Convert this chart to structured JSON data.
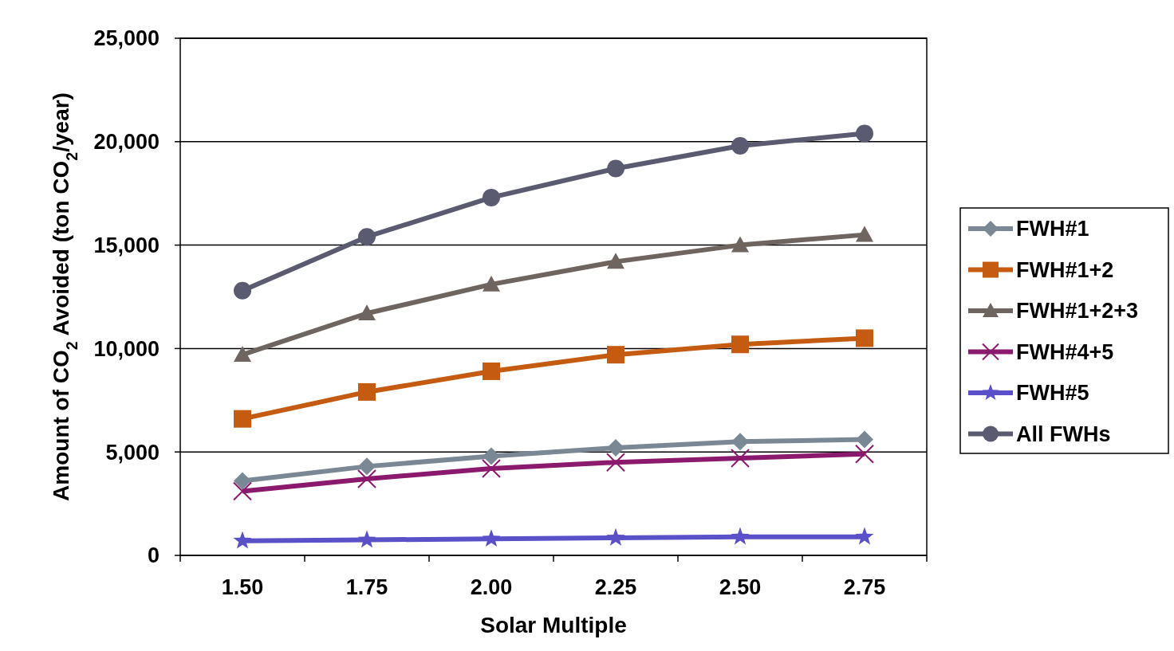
{
  "chart_data": {
    "type": "line",
    "xlabel": "Solar Multiple",
    "ylabel": "Amount of CO$_{2}$ Avoided (ton CO$_{2}$/year)",
    "categories": [
      "1.50",
      "1.75",
      "2.00",
      "2.25",
      "2.50",
      "2.75"
    ],
    "series": [
      {
        "name": "FWH#1",
        "color": "#7a8896",
        "marker": "diamond",
        "values": [
          3600,
          4300,
          4800,
          5200,
          5500,
          5600
        ]
      },
      {
        "name": "FWH#1+2",
        "color": "#c55a11",
        "marker": "square",
        "values": [
          6600,
          7900,
          8900,
          9700,
          10200,
          10500
        ]
      },
      {
        "name": "FWH#1+2+3",
        "color": "#6e6460",
        "marker": "triangle",
        "values": [
          9700,
          11700,
          13100,
          14200,
          15000,
          15500
        ]
      },
      {
        "name": "FWH#4+5",
        "color": "#8b1a6e",
        "marker": "cross",
        "values": [
          3100,
          3700,
          4200,
          4500,
          4700,
          4900
        ]
      },
      {
        "name": "FWH#5",
        "color": "#5a50c8",
        "marker": "star",
        "values": [
          700,
          750,
          800,
          850,
          900,
          900
        ]
      },
      {
        "name": "All FWHs",
        "color": "#5a5a70",
        "marker": "circle",
        "values": [
          12800,
          15400,
          17300,
          18700,
          19800,
          20400
        ]
      }
    ],
    "ylim": [
      0,
      25000
    ],
    "yticks": [
      {
        "value": 0,
        "label": "0"
      },
      {
        "value": 5000,
        "label": "5,000"
      },
      {
        "value": 10000,
        "label": "10,000"
      },
      {
        "value": 15000,
        "label": "15,000"
      },
      {
        "value": 20000,
        "label": "20,000"
      },
      {
        "value": 25000,
        "label": "25,000"
      }
    ],
    "grid": "y",
    "legend": "right"
  }
}
